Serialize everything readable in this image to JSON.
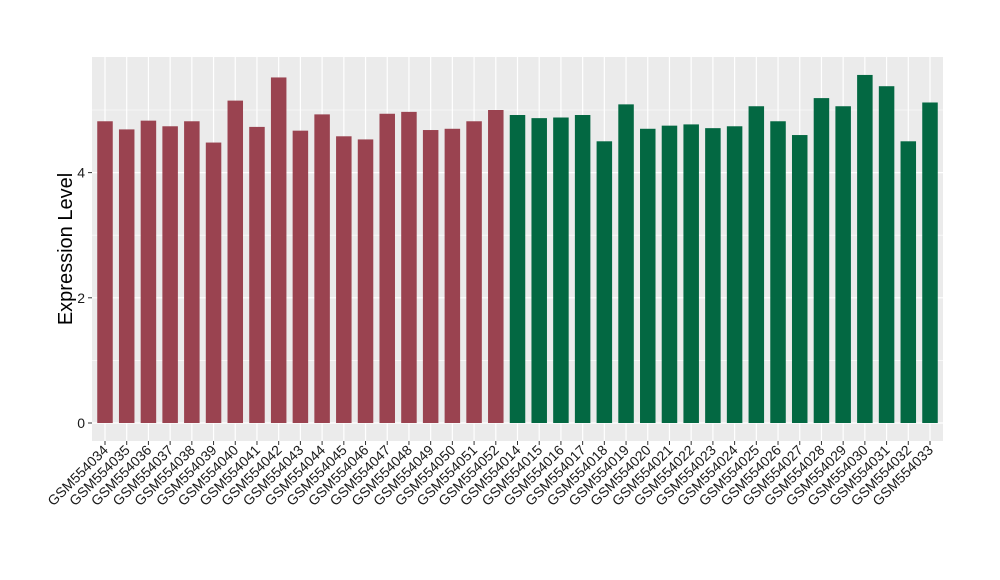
{
  "chart_data": {
    "type": "bar",
    "title": "",
    "xlabel": "",
    "ylabel": "Expression Level",
    "ylim": [
      0,
      5.8
    ],
    "y_ticks": [
      0,
      2,
      4
    ],
    "grid": true,
    "legend": "none",
    "categories": [
      "GSM554034",
      "GSM554035",
      "GSM554036",
      "GSM554037",
      "GSM554038",
      "GSM554039",
      "GSM554040",
      "GSM554041",
      "GSM554042",
      "GSM554043",
      "GSM554044",
      "GSM554045",
      "GSM554046",
      "GSM554047",
      "GSM554048",
      "GSM554049",
      "GSM554050",
      "GSM554051",
      "GSM554052",
      "GSM554014",
      "GSM554015",
      "GSM554016",
      "GSM554017",
      "GSM554018",
      "GSM554019",
      "GSM554020",
      "GSM554021",
      "GSM554022",
      "GSM554023",
      "GSM554024",
      "GSM554025",
      "GSM554026",
      "GSM554027",
      "GSM554028",
      "GSM554029",
      "GSM554030",
      "GSM554031",
      "GSM554032",
      "GSM554033"
    ],
    "values": [
      4.82,
      4.69,
      4.83,
      4.74,
      4.82,
      4.48,
      5.15,
      4.73,
      5.52,
      4.67,
      4.93,
      4.58,
      4.53,
      4.94,
      4.97,
      4.68,
      4.7,
      4.82,
      5.0,
      4.92,
      4.87,
      4.88,
      4.92,
      4.5,
      5.09,
      4.7,
      4.75,
      4.77,
      4.71,
      4.74,
      5.06,
      4.82,
      4.6,
      5.19,
      5.06,
      5.56,
      5.38,
      4.5,
      5.12
    ],
    "group_sizes": [
      19,
      20
    ],
    "group_colors": [
      "#9a4350",
      "#036842"
    ],
    "panel_background": "#ebebeb",
    "grid_color": "#ffffff"
  }
}
